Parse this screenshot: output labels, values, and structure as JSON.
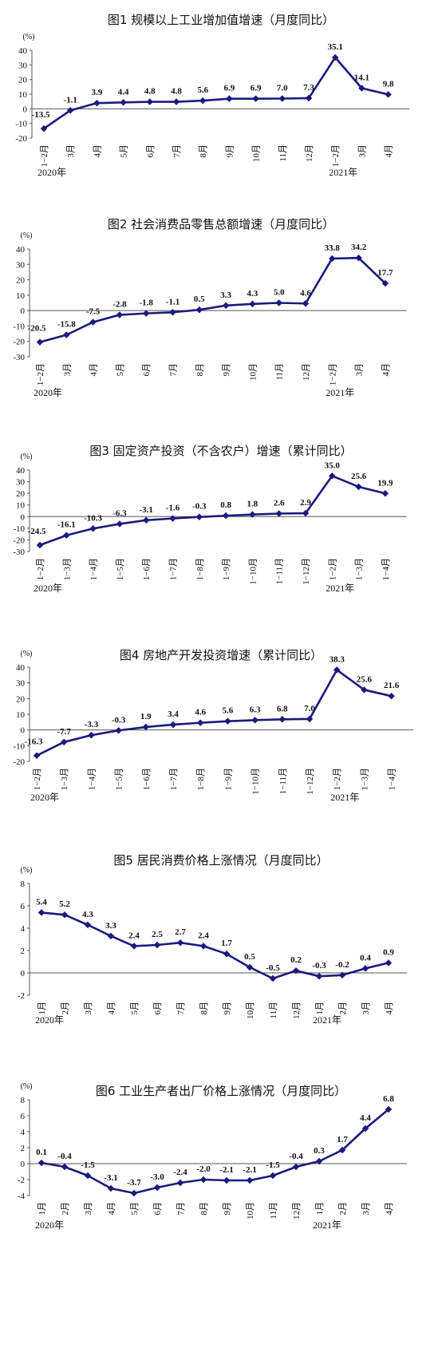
{
  "accent_color": "#1a1a7e",
  "chart_data": [
    {
      "type": "line",
      "title": "图1   规模以上工业增加值增速（月度同比）",
      "unit": "(%)",
      "ylim": [
        -20,
        40
      ],
      "yticks": [
        -20,
        -10,
        0,
        10,
        20,
        30,
        40
      ],
      "categories": [
        "1−2月",
        "3月",
        "4月",
        "5月",
        "6月",
        "7月",
        "8月",
        "9月",
        "10月",
        "11月",
        "12月",
        "1−2月",
        "3月",
        "4月"
      ],
      "values": [
        -13.5,
        -1.1,
        3.9,
        4.4,
        4.8,
        4.8,
        5.6,
        6.9,
        6.9,
        7.0,
        7.3,
        35.1,
        14.1,
        9.8
      ],
      "data_labels": [
        "-13.5",
        "-1.1",
        "3.9",
        "4.4",
        "4.8",
        "4.8",
        "5.6",
        "6.9",
        "6.9",
        "7.0",
        "7.3",
        "35.1",
        "14.1",
        "9.8"
      ],
      "year_labels": [
        {
          "text": "2020年",
          "index": 0
        },
        {
          "text": "2021年",
          "index": 11
        }
      ],
      "grid": false
    },
    {
      "type": "line",
      "title": "图2   社会消费品零售总额增速（月度同比）",
      "unit": "(%)",
      "ylim": [
        -30,
        40
      ],
      "yticks": [
        -30,
        -20,
        -10,
        0,
        10,
        20,
        30,
        40
      ],
      "categories": [
        "1−2月",
        "3月",
        "4月",
        "5月",
        "6月",
        "7月",
        "8月",
        "9月",
        "10月",
        "11月",
        "12月",
        "1−2月",
        "3月",
        "4月"
      ],
      "values": [
        -20.5,
        -15.8,
        -7.5,
        -2.8,
        -1.8,
        -1.1,
        0.5,
        3.3,
        4.3,
        5.0,
        4.6,
        33.8,
        34.2,
        17.7
      ],
      "data_labels": [
        "-20.5",
        "-15.8",
        "-7.5",
        "-2.8",
        "-1.8",
        "-1.1",
        "0.5",
        "3.3",
        "4.3",
        "5.0",
        "4.6",
        "33.8",
        "34.2",
        "17.7"
      ],
      "year_labels": [
        {
          "text": "2020年",
          "index": 0
        },
        {
          "text": "2021年",
          "index": 11
        }
      ],
      "grid": false
    },
    {
      "type": "line",
      "title": "图3   固定资产投资（不含农户）增速（累计同比）",
      "unit": "(%)",
      "ylim": [
        -30,
        40
      ],
      "yticks": [
        -30,
        -20,
        -10,
        0,
        10,
        20,
        30,
        40
      ],
      "categories": [
        "1−2月",
        "1−3月",
        "1−4月",
        "1−5月",
        "1−6月",
        "1−7月",
        "1−8月",
        "1−9月",
        "1−10月",
        "1−11月",
        "1−12月",
        "1−2月",
        "1−3月",
        "1−4月"
      ],
      "values": [
        -24.5,
        -16.1,
        -10.3,
        -6.3,
        -3.1,
        -1.6,
        -0.3,
        0.8,
        1.8,
        2.6,
        2.9,
        35.0,
        25.6,
        19.9
      ],
      "data_labels": [
        "-24.5",
        "-16.1",
        "-10.3",
        "-6.3",
        "-3.1",
        "-1.6",
        "-0.3",
        "0.8",
        "1.8",
        "2.6",
        "2.9",
        "35.0",
        "25.6",
        "19.9"
      ],
      "year_labels": [
        {
          "text": "2020年",
          "index": 0
        },
        {
          "text": "2021年",
          "index": 11
        }
      ],
      "grid": false
    },
    {
      "type": "line",
      "title": "图4   房地产开发投资增速（累计同比）",
      "unit": "(%)",
      "ylim": [
        -20,
        40
      ],
      "yticks": [
        -20,
        -10,
        0,
        10,
        20,
        30,
        40
      ],
      "categories": [
        "1−2月",
        "1−3月",
        "1−4月",
        "1−5月",
        "1−6月",
        "1−7月",
        "1−8月",
        "1−9月",
        "1−10月",
        "1−11月",
        "1−12月",
        "1−2月",
        "1−3月",
        "1−4月"
      ],
      "values": [
        -16.3,
        -7.7,
        -3.3,
        -0.3,
        1.9,
        3.4,
        4.6,
        5.6,
        6.3,
        6.8,
        7.0,
        38.3,
        25.6,
        21.6
      ],
      "data_labels": [
        "-16.3",
        "-7.7",
        "-3.3",
        "-0.3",
        "1.9",
        "3.4",
        "4.6",
        "5.6",
        "6.3",
        "6.8",
        "7.0",
        "38.3",
        "25.6",
        "21.6"
      ],
      "year_labels": [
        {
          "text": "2020年",
          "index": 0
        },
        {
          "text": "2021年",
          "index": 11
        }
      ],
      "grid": false
    },
    {
      "type": "line",
      "title": "图5   居民消费价格上涨情况（月度同比）",
      "unit": "(%)",
      "ylim": [
        -2,
        8
      ],
      "yticks": [
        -2,
        0,
        2,
        4,
        6,
        8
      ],
      "categories": [
        "1月",
        "2月",
        "3月",
        "4月",
        "5月",
        "6月",
        "7月",
        "8月",
        "9月",
        "10月",
        "11月",
        "12月",
        "1月",
        "2月",
        "3月",
        "4月"
      ],
      "values": [
        5.4,
        5.2,
        4.3,
        3.3,
        2.4,
        2.5,
        2.7,
        2.4,
        1.7,
        0.5,
        -0.5,
        0.2,
        -0.3,
        -0.2,
        0.4,
        0.9
      ],
      "data_labels": [
        "5.4",
        "5.2",
        "4.3",
        "3.3",
        "2.4",
        "2.5",
        "2.7",
        "2.4",
        "1.7",
        "0.5",
        "-0.5",
        "0.2",
        "-0.3",
        "-0.2",
        "0.4",
        "0.9"
      ],
      "year_labels": [
        {
          "text": "2020年",
          "index": 0
        },
        {
          "text": "2021年",
          "index": 12
        }
      ],
      "grid": false
    },
    {
      "type": "line",
      "title": "图6   工业生产者出厂价格上涨情况（月度同比）",
      "unit": "(%)",
      "ylim": [
        -4,
        8
      ],
      "yticks": [
        -4,
        -2,
        0,
        2,
        4,
        6,
        8
      ],
      "categories": [
        "1月",
        "2月",
        "3月",
        "4月",
        "5月",
        "6月",
        "7月",
        "8月",
        "9月",
        "10月",
        "11月",
        "12月",
        "1月",
        "2月",
        "3月",
        "4月"
      ],
      "values": [
        0.1,
        -0.4,
        -1.5,
        -3.1,
        -3.7,
        -3.0,
        -2.4,
        -2.0,
        -2.1,
        -2.1,
        -1.5,
        -0.4,
        0.3,
        1.7,
        4.4,
        6.8
      ],
      "data_labels": [
        "0.1",
        "-0.4",
        "-1.5",
        "-3.1",
        "-3.7",
        "-3.0",
        "-2.4",
        "-2.0",
        "-2.1",
        "-2.1",
        "-1.5",
        "-0.4",
        "0.3",
        "1.7",
        "4.4",
        "6.8"
      ],
      "year_labels": [
        {
          "text": "2020年",
          "index": 0
        },
        {
          "text": "2021年",
          "index": 12
        }
      ],
      "grid": false
    }
  ]
}
